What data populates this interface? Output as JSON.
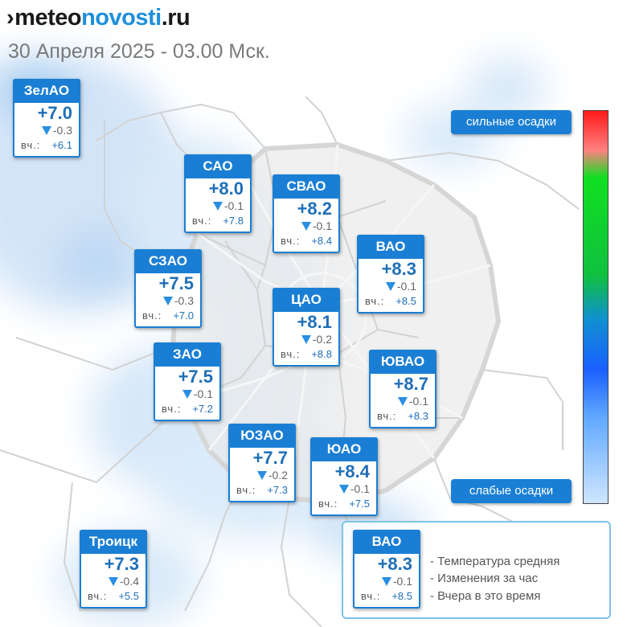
{
  "header": {
    "logo_mark": "›",
    "logo_part1": "meteo",
    "logo_part2": "novosti",
    "logo_part3": ".ru",
    "datetime": "30 Апреля 2025 - 03.00 Мск."
  },
  "yesterday_label": "вч.:",
  "districts": [
    {
      "name": "ЗелАО",
      "temp": "+7.0",
      "change": "-0.3",
      "yesterday": "+6.1"
    },
    {
      "name": "САО",
      "temp": "+8.0",
      "change": "-0.1",
      "yesterday": "+7.8"
    },
    {
      "name": "СВАО",
      "temp": "+8.2",
      "change": "-0.1",
      "yesterday": "+8.4"
    },
    {
      "name": "ВАО",
      "temp": "+8.3",
      "change": "-0.1",
      "yesterday": "+8.5"
    },
    {
      "name": "СЗАО",
      "temp": "+7.5",
      "change": "-0.3",
      "yesterday": "+7.0"
    },
    {
      "name": "ЦАО",
      "temp": "+8.1",
      "change": "-0.2",
      "yesterday": "+8.8"
    },
    {
      "name": "ЗАО",
      "temp": "+7.5",
      "change": "-0.1",
      "yesterday": "+7.2"
    },
    {
      "name": "ЮВАО",
      "temp": "+8.7",
      "change": "-0.1",
      "yesterday": "+8.3"
    },
    {
      "name": "ЮЗАО",
      "temp": "+7.7",
      "change": "-0.2",
      "yesterday": "+7.3"
    },
    {
      "name": "ЮАО",
      "temp": "+8.4",
      "change": "-0.1",
      "yesterday": "+7.5"
    },
    {
      "name": "Троицк",
      "temp": "+7.3",
      "change": "-0.4",
      "yesterday": "+5.5"
    }
  ],
  "precip_scale": {
    "strong_label": "сильные осадки",
    "weak_label": "слабые осадки",
    "colors": [
      "#ff1a1a",
      "#ff8080",
      "#10e020",
      "#1a60ff",
      "#cfe6ff"
    ]
  },
  "legend": {
    "example": {
      "name": "ВАО",
      "temp": "+8.3",
      "change": "-0.1",
      "yesterday": "+8.5"
    },
    "line1": "- Температура средняя",
    "line2": "- Изменения за час",
    "line3": "- Вчера в это время"
  }
}
